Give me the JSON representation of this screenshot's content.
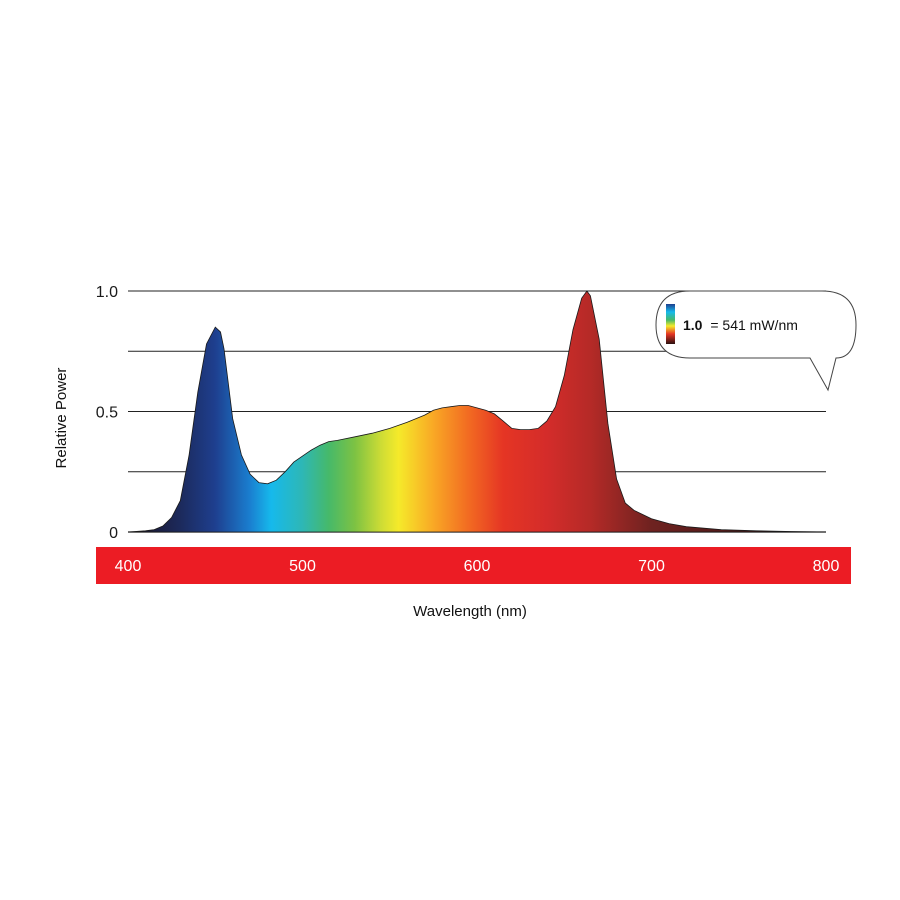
{
  "chart_data": {
    "type": "area",
    "title": "",
    "xlabel": "Wavelength (nm)",
    "ylabel": "Relative Power",
    "xlim": [
      400,
      800
    ],
    "ylim": [
      0,
      1.0
    ],
    "x_ticks": [
      400,
      500,
      600,
      700,
      800
    ],
    "x_tick_labels": [
      "400",
      "500",
      "600",
      "700",
      "800"
    ],
    "y_ticks": [
      0,
      0.25,
      0.5,
      0.75,
      1.0
    ],
    "y_tick_labels": [
      "0",
      "",
      "0.5",
      "",
      "1.0"
    ],
    "grid": true,
    "axis_band_color": "#ec1c24",
    "series": [
      {
        "x": [
          400,
          410,
          415,
          420,
          425,
          430,
          435,
          440,
          445,
          450,
          453,
          455,
          460,
          465,
          470,
          475,
          480,
          485,
          490,
          495,
          500,
          505,
          510,
          515,
          520,
          530,
          540,
          550,
          560,
          570,
          575,
          580,
          585,
          590,
          595,
          600,
          605,
          610,
          615,
          620,
          625,
          630,
          635,
          640,
          645,
          650,
          655,
          660,
          663,
          665,
          670,
          675,
          680,
          685,
          690,
          700,
          710,
          720,
          740,
          760,
          780,
          800
        ],
        "values": [
          0.0,
          0.005,
          0.01,
          0.025,
          0.06,
          0.13,
          0.32,
          0.58,
          0.78,
          0.85,
          0.83,
          0.76,
          0.47,
          0.32,
          0.24,
          0.205,
          0.2,
          0.215,
          0.25,
          0.29,
          0.315,
          0.34,
          0.36,
          0.375,
          0.38,
          0.395,
          0.41,
          0.43,
          0.455,
          0.485,
          0.505,
          0.515,
          0.52,
          0.525,
          0.525,
          0.515,
          0.505,
          0.49,
          0.46,
          0.43,
          0.425,
          0.425,
          0.43,
          0.46,
          0.52,
          0.65,
          0.84,
          0.97,
          1.0,
          0.98,
          0.8,
          0.45,
          0.22,
          0.12,
          0.09,
          0.055,
          0.035,
          0.022,
          0.01,
          0.005,
          0.002,
          0.0
        ]
      }
    ],
    "color_stops": [
      {
        "nm": 400,
        "color": "#1a1020"
      },
      {
        "nm": 430,
        "color": "#1c2a5c"
      },
      {
        "nm": 450,
        "color": "#1e3f8f"
      },
      {
        "nm": 470,
        "color": "#1a7fd0"
      },
      {
        "nm": 482,
        "color": "#16b9ec"
      },
      {
        "nm": 500,
        "color": "#2eb7b5"
      },
      {
        "nm": 515,
        "color": "#46b96a"
      },
      {
        "nm": 530,
        "color": "#7dc243"
      },
      {
        "nm": 545,
        "color": "#cddc35"
      },
      {
        "nm": 555,
        "color": "#f5ea2a"
      },
      {
        "nm": 575,
        "color": "#f9a825"
      },
      {
        "nm": 595,
        "color": "#f26b22"
      },
      {
        "nm": 615,
        "color": "#e53524"
      },
      {
        "nm": 640,
        "color": "#d42c2a"
      },
      {
        "nm": 665,
        "color": "#b52a27"
      },
      {
        "nm": 700,
        "color": "#6e2220"
      },
      {
        "nm": 800,
        "color": "#2a1010"
      }
    ],
    "annotation": {
      "value_label": "1.0",
      "text": "= 541 mW/nm"
    }
  }
}
